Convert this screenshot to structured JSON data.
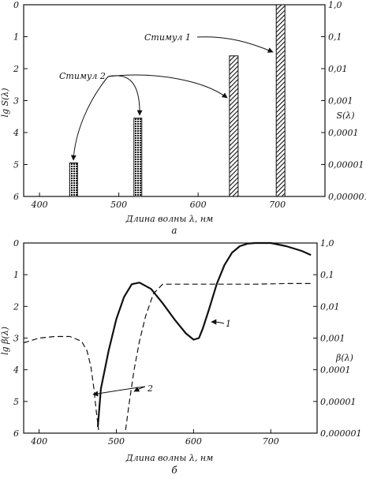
{
  "chart_data": [
    {
      "type": "bar",
      "panel_label": "а",
      "xlabel": "Длина волны λ, нм",
      "ylabel_left": "lg S(λ)",
      "ylabel_right": "S(λ)",
      "xlim": [
        380,
        760
      ],
      "ylim": [
        0,
        6
      ],
      "y_inverted": true,
      "x_ticks": [
        "400",
        "500",
        "600",
        "700"
      ],
      "y_ticks_left": [
        "0",
        "1",
        "2",
        "3",
        "4",
        "5",
        "6"
      ],
      "y_ticks_right": [
        "1,0",
        "0,1",
        "0,01",
        "0,001",
        "0,0001",
        "0,00001",
        "0,000001"
      ],
      "bars": [
        {
          "x": 443,
          "lg": 4.95,
          "stimulus": 2
        },
        {
          "x": 524,
          "lg": 3.55,
          "stimulus": 2
        },
        {
          "x": 645,
          "lg": 1.6,
          "stimulus": 1
        },
        {
          "x": 704,
          "lg": 0.0,
          "stimulus": 1
        }
      ],
      "annotations": [
        "Стимул 1",
        "Стимул 2"
      ]
    },
    {
      "type": "line",
      "panel_label": "б",
      "xlabel": "Длина волны λ, нм",
      "ylabel_left": "lg β(λ)",
      "ylabel_right": "β(λ)",
      "xlim": [
        380,
        760
      ],
      "ylim": [
        0,
        6
      ],
      "y_inverted": true,
      "x_ticks": [
        "400",
        "500",
        "600",
        "700"
      ],
      "y_ticks_left": [
        "0",
        "1",
        "2",
        "3",
        "4",
        "5",
        "6"
      ],
      "y_ticks_right": [
        "1,0",
        "0,1",
        "0,01",
        "0,001",
        "0,0001",
        "0,00001",
        "0,000001"
      ],
      "series": [
        {
          "name": "1",
          "style": "solid",
          "x": [
            476,
            480,
            490,
            500,
            510,
            520,
            530,
            545,
            560,
            575,
            590,
            600,
            607,
            612,
            620,
            630,
            640,
            650,
            660,
            670,
            680,
            700,
            720,
            740,
            752
          ],
          "y": [
            5.8,
            4.6,
            3.4,
            2.4,
            1.7,
            1.3,
            1.25,
            1.45,
            1.9,
            2.4,
            2.85,
            3.05,
            3.0,
            2.7,
            2.1,
            1.3,
            0.7,
            0.3,
            0.1,
            0.02,
            0.0,
            0.0,
            0.1,
            0.25,
            0.38
          ]
        },
        {
          "name": "2",
          "style": "dashed",
          "x": [
            380,
            400,
            420,
            440,
            455,
            462,
            467,
            471,
            474,
            477
          ],
          "y": [
            3.15,
            3.0,
            2.95,
            2.95,
            3.1,
            3.4,
            3.9,
            4.6,
            5.3,
            5.9
          ]
        },
        {
          "name": "2",
          "style": "dashed",
          "x": [
            512,
            517,
            523,
            530,
            538,
            548,
            560,
            580,
            620,
            680,
            720,
            752
          ],
          "y": [
            5.9,
            5.0,
            4.0,
            3.1,
            2.3,
            1.6,
            1.3,
            1.3,
            1.3,
            1.3,
            1.28,
            1.28
          ]
        }
      ],
      "curve_labels": [
        "1",
        "2"
      ]
    }
  ]
}
